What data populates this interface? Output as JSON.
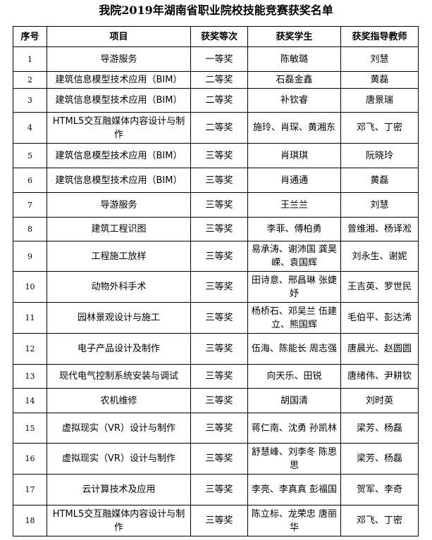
{
  "title": "我院2019年湖南省职业院校技能竞赛获奖名单",
  "headers": [
    "序号",
    "项目",
    "获奖等次",
    "获奖学生",
    "获奖指导教师"
  ],
  "rows": [
    {
      "no": "1",
      "project": "导游服务",
      "award": "一等奖",
      "students": "陈敏璐",
      "teachers": "刘慧"
    },
    {
      "no": "2",
      "project": "建筑信息模型技术应用（BIM）",
      "award": "二等奖",
      "students": "石磊金鑫",
      "teachers": "黄磊"
    },
    {
      "no": "3",
      "project": "建筑信息模型技术应用（BIM）",
      "award": "二等奖",
      "students": "补钦睿",
      "teachers": "唐景瑞"
    },
    {
      "no": "4",
      "project": "HTML5交互融媒体内容设计与制作",
      "award": "二等奖",
      "students": "施玲、肖琛、黄湘东",
      "teachers": "邓飞、丁密"
    },
    {
      "no": "5",
      "project": "建筑信息模型技术应用（BIM）",
      "award": "三等奖",
      "students": "肖琪琪",
      "teachers": "阮晓玲"
    },
    {
      "no": "6",
      "project": "建筑信息模型技术应用（BIM）",
      "award": "三等奖",
      "students": "肖通通",
      "teachers": "黄磊"
    },
    {
      "no": "7",
      "project": "导游服务",
      "award": "三等奖",
      "students": "王兰兰",
      "teachers": "刘慧"
    },
    {
      "no": "8",
      "project": "建筑工程识图",
      "award": "三等奖",
      "students": "李菲、傅柏勇",
      "teachers": "曾维湘、杨译淞"
    },
    {
      "no": "9",
      "project": "工程施工放样",
      "award": "三等奖",
      "students": "易承涛、谢沛国 龚昊嵘、袁国辉",
      "teachers": "刘永生、谢妮"
    },
    {
      "no": "10",
      "project": "动物外科手术",
      "award": "三等奖",
      "students": "田诗意、邢昌琳 张婕妤",
      "teachers": "王吉英、罗世民"
    },
    {
      "no": "11",
      "project": "园林景观设计与施工",
      "award": "三等奖",
      "students": "杨桥石、邓吴兰 伍建立、熊国辉",
      "teachers": "毛伯平、彭达浠"
    },
    {
      "no": "12",
      "project": "电子产品设计及制作",
      "award": "三等奖",
      "students": "伍海、陈能长 周志强",
      "teachers": "唐晨光、赵圆圆"
    },
    {
      "no": "13",
      "project": "现代电气控制系统安装与调试",
      "award": "三等奖",
      "students": "向天乐、田锐",
      "teachers": "唐绪伟、尹耕钦"
    },
    {
      "no": "14",
      "project": "农机维修",
      "award": "三等奖",
      "students": "胡国清",
      "teachers": "刘时英"
    },
    {
      "no": "15",
      "project": "虚拟现实（VR）设计与制作",
      "award": "三等奖",
      "students": "蒋仁南、沈勇 孙凯林",
      "teachers": "梁芳、杨磊"
    },
    {
      "no": "16",
      "project": "虚拟现实（VR）设计与制作",
      "award": "三等奖",
      "students": "舒慧峰、刘李冬 陈思思",
      "teachers": "梁芳、杨磊"
    },
    {
      "no": "17",
      "project": "云计算技术及应用",
      "award": "三等奖",
      "students": "李亮、李真真 彭福国",
      "teachers": "贺军、李奇"
    },
    {
      "no": "18",
      "project": "HTML5交互融媒体内容设计与制作",
      "award": "三等奖",
      "students": "陈立标、龙荣忠 唐丽华",
      "teachers": "邓飞、丁密"
    }
  ]
}
